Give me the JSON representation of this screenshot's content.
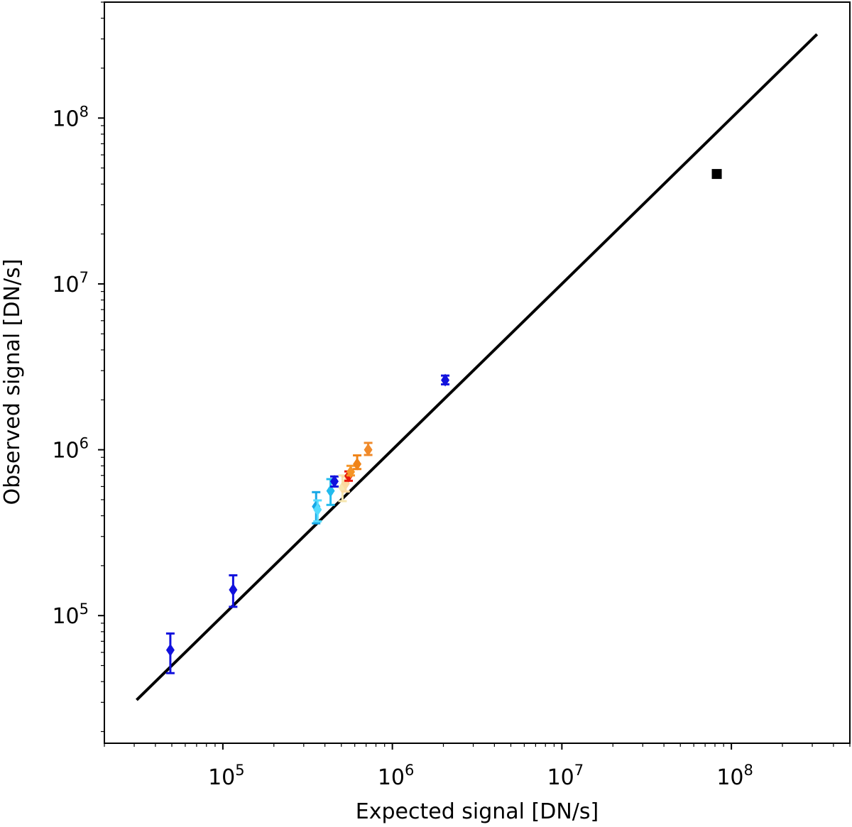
{
  "chart_data": {
    "type": "scatter",
    "title": "",
    "xlabel": "Expected signal [DN/s]",
    "ylabel": "Observed signal [DN/s]",
    "xscale": "log",
    "yscale": "log",
    "xlim": [
      20000,
      500000000
    ],
    "ylim": [
      17000,
      500000000
    ],
    "grid": false,
    "legend": "none",
    "x_ticks": [
      {
        "base": "10",
        "exp": "5",
        "value": 100000
      },
      {
        "base": "10",
        "exp": "6",
        "value": 1000000
      },
      {
        "base": "10",
        "exp": "7",
        "value": 10000000
      },
      {
        "base": "10",
        "exp": "8",
        "value": 100000000
      }
    ],
    "y_ticks": [
      {
        "base": "10",
        "exp": "5",
        "value": 100000
      },
      {
        "base": "10",
        "exp": "6",
        "value": 1000000
      },
      {
        "base": "10",
        "exp": "7",
        "value": 10000000
      },
      {
        "base": "10",
        "exp": "8",
        "value": 100000000
      }
    ],
    "reference_line": {
      "from": [
        31000,
        31000
      ],
      "to": [
        320000000,
        320000000
      ],
      "color": "#000000"
    },
    "points": [
      {
        "x": 49000,
        "y": 62000,
        "y_low": 45000,
        "y_high": 78000,
        "color": "#1111dd",
        "marker": "diamond"
      },
      {
        "x": 115000,
        "y": 143000,
        "y_low": 113000,
        "y_high": 175000,
        "color": "#1111dd",
        "marker": "diamond"
      },
      {
        "x": 355000,
        "y": 455000,
        "y_low": 360000,
        "y_high": 555000,
        "color": "#17a7e6",
        "marker": "diamond"
      },
      {
        "x": 362000,
        "y": 435000,
        "y_low": 370000,
        "y_high": 495000,
        "color": "#55dcff",
        "marker": "diamond"
      },
      {
        "x": 432000,
        "y": 565000,
        "y_low": 465000,
        "y_high": 665000,
        "color": "#22bbee",
        "marker": "diamond"
      },
      {
        "x": 455000,
        "y": 645000,
        "y_low": 600000,
        "y_high": 690000,
        "color": "#1111dd",
        "marker": "diamond"
      },
      {
        "x": 508000,
        "y": 590000,
        "y_low": 490000,
        "y_high": 700000,
        "color": "#f6e6b0",
        "marker": "diamond"
      },
      {
        "x": 530000,
        "y": 625000,
        "y_low": 560000,
        "y_high": 690000,
        "color": "#fcd9a0",
        "marker": "diamond"
      },
      {
        "x": 552000,
        "y": 695000,
        "y_low": 650000,
        "y_high": 740000,
        "color": "#e8160c",
        "marker": "diamond"
      },
      {
        "x": 568000,
        "y": 735000,
        "y_low": 700000,
        "y_high": 800000,
        "color": "#f59426",
        "marker": "diamond"
      },
      {
        "x": 620000,
        "y": 820000,
        "y_low": 765000,
        "y_high": 925000,
        "color": "#f08418",
        "marker": "diamond"
      },
      {
        "x": 720000,
        "y": 1000000,
        "y_low": 930000,
        "y_high": 1100000,
        "color": "#f08a2a",
        "marker": "diamond"
      },
      {
        "x": 2050000,
        "y": 2630000,
        "y_low": 2480000,
        "y_high": 2800000,
        "color": "#1111dd",
        "marker": "diamond"
      },
      {
        "x": 82000000,
        "y": 46000000,
        "color": "#000000",
        "marker": "square"
      }
    ]
  }
}
